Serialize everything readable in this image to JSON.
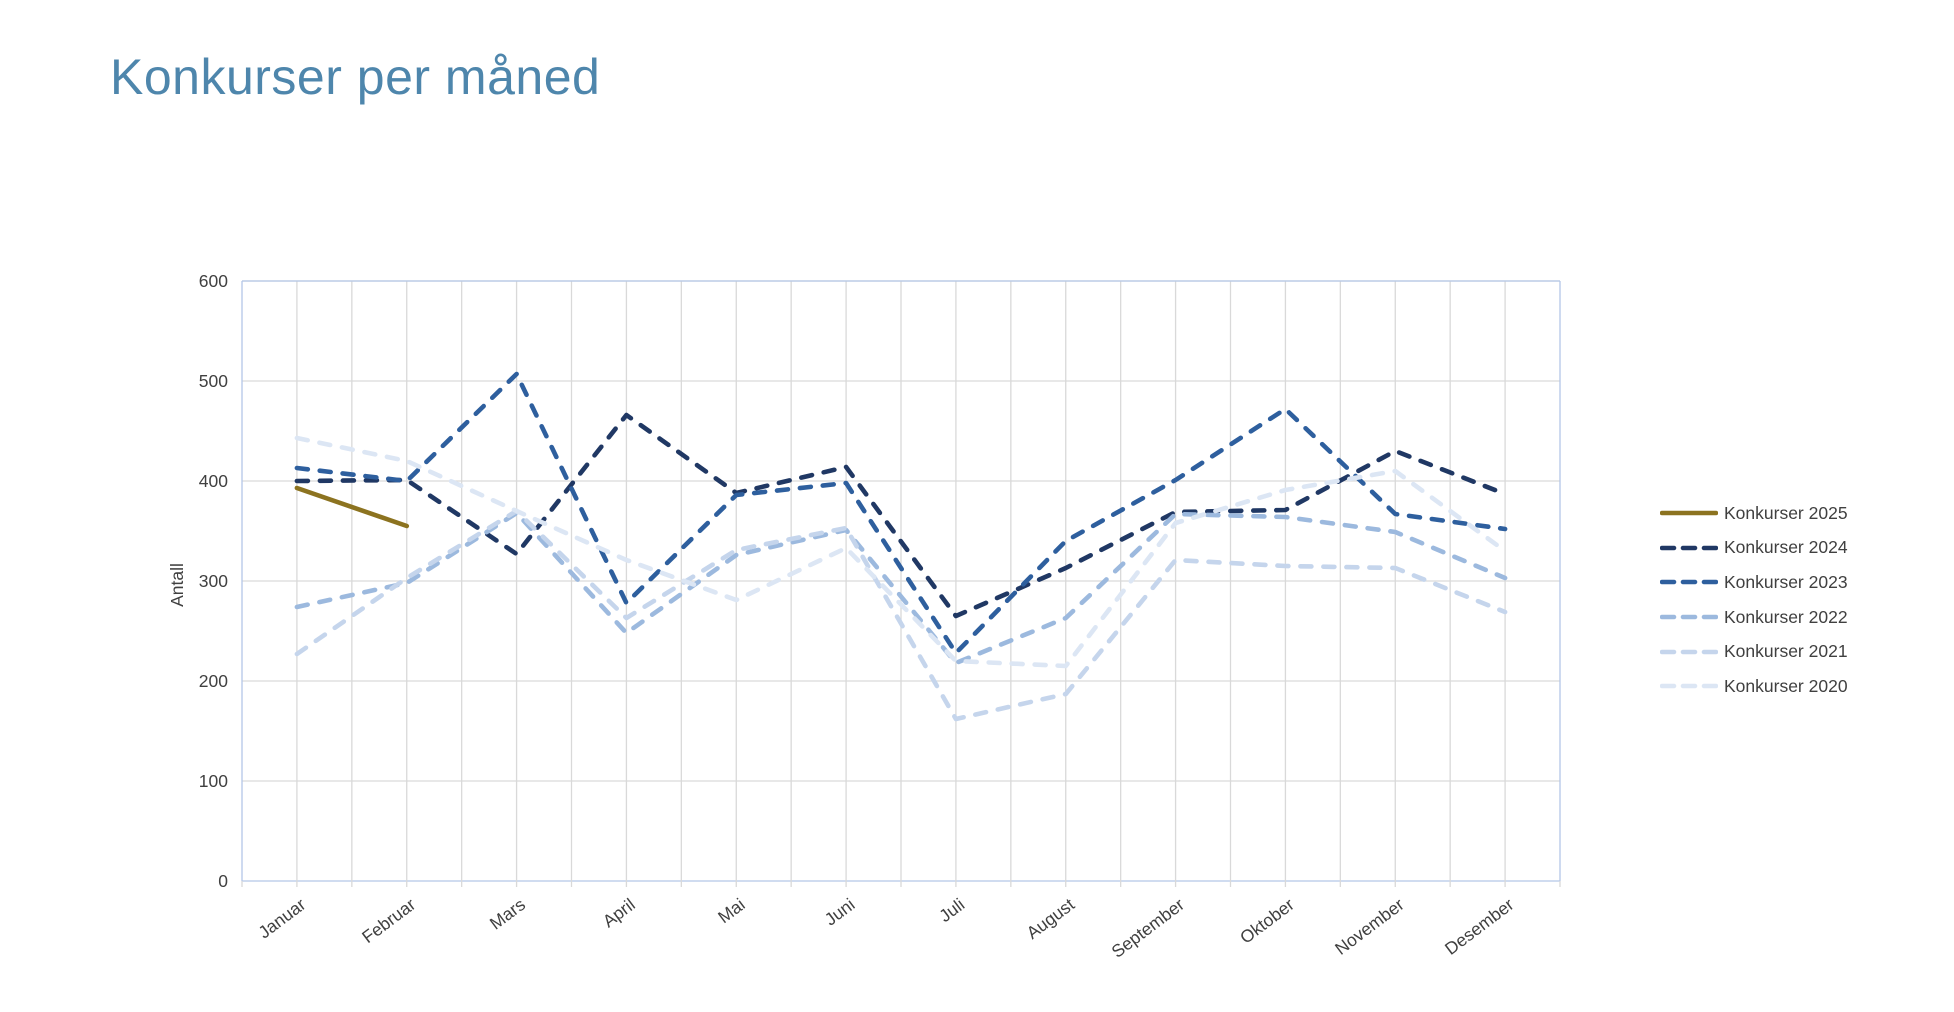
{
  "title": "Konkurser per måned",
  "chart_data": {
    "type": "line",
    "categories": [
      "Januar",
      "Februar",
      "Mars",
      "April",
      "Mai",
      "Juni",
      "Juli",
      "August",
      "September",
      "Oktober",
      "November",
      "Desember"
    ],
    "series": [
      {
        "name": "Konkurser 2025",
        "color": "#8C7320",
        "dashed": false,
        "values": [
          393,
          355,
          null,
          null,
          null,
          null,
          null,
          null,
          null,
          null,
          null,
          null
        ]
      },
      {
        "name": "Konkurser 2024",
        "color": "#203864",
        "dashed": true,
        "values": [
          400,
          401,
          327,
          466,
          388,
          414,
          265,
          313,
          369,
          371,
          430,
          387
        ]
      },
      {
        "name": "Konkurser 2023",
        "color": "#2E5F9E",
        "dashed": true,
        "values": [
          413,
          400,
          507,
          278,
          386,
          398,
          228,
          340,
          401,
          472,
          367,
          352
        ]
      },
      {
        "name": "Konkurser 2022",
        "color": "#9CB9DE",
        "dashed": true,
        "values": [
          274,
          298,
          368,
          248,
          326,
          351,
          218,
          263,
          367,
          364,
          349,
          303
        ]
      },
      {
        "name": "Konkurser 2021",
        "color": "#C5D5EC",
        "dashed": true,
        "values": [
          227,
          303,
          370,
          263,
          331,
          353,
          162,
          187,
          321,
          315,
          313,
          269
        ]
      },
      {
        "name": "Konkurser 2020",
        "color": "#DCE6F4",
        "dashed": true,
        "values": [
          443,
          420,
          370,
          321,
          281,
          333,
          220,
          215,
          358,
          391,
          410,
          330
        ]
      }
    ],
    "xlabel": "",
    "ylabel": "Antall",
    "ylim": [
      0,
      600
    ],
    "ytick_step": 100,
    "grid": true,
    "legend_position": "right"
  },
  "colors": {
    "title": "#4E86AC",
    "axis_text": "#404040",
    "gridline": "#D9D9D9",
    "plot_border": "#B4C7E7",
    "background": "#FFFFFF"
  }
}
